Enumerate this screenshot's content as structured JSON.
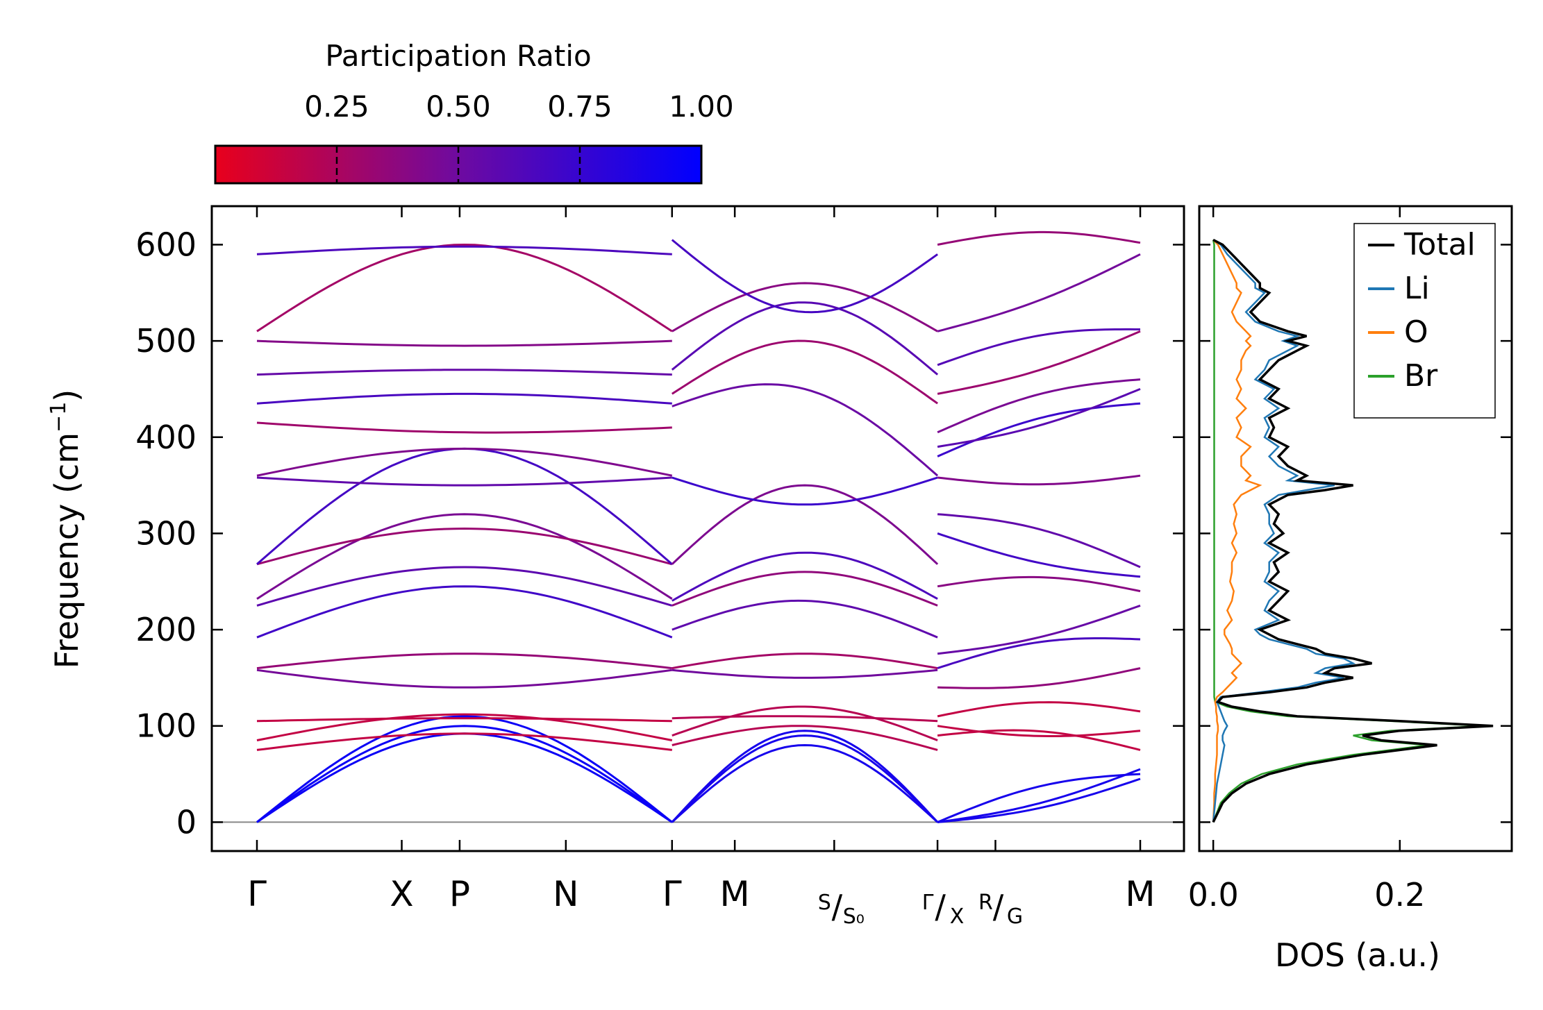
{
  "chart_data": [
    {
      "type": "line",
      "name": "phonon-dispersion",
      "ylabel_main": "Frequency (cm",
      "ylabel_sup": "−1",
      "ylabel_end": ")",
      "ylim": [
        -30,
        640
      ],
      "yticks": [
        0,
        100,
        200,
        300,
        400,
        500,
        600
      ],
      "ytick_labels": [
        "0",
        "100",
        "200",
        "300",
        "400",
        "500",
        "600"
      ],
      "segments": [
        {
          "labels": [
            "Γ",
            "X",
            "P",
            "N",
            "Γ"
          ],
          "kpos": [
            0,
            1.5,
            2.1,
            3.2,
            4.3
          ]
        },
        {
          "labels": [
            "Γ",
            "M",
            "S/S0",
            "Γ/X"
          ],
          "kpos": [
            4.3,
            4.95,
            5.98,
            7.05
          ]
        },
        {
          "labels": [
            "Γ/X",
            "R/G",
            "M"
          ],
          "kpos": [
            7.05,
            7.65,
            9.15
          ]
        }
      ],
      "tick_labels": [
        {
          "main": "Γ",
          "k": 0
        },
        {
          "main": "X",
          "k": 1.5
        },
        {
          "main": "P",
          "k": 2.1
        },
        {
          "main": "N",
          "k": 3.2
        },
        {
          "main": "Γ",
          "k": 4.3
        },
        {
          "main": "M",
          "k": 4.95
        },
        {
          "main": "S",
          "sub": "S₀",
          "k": 5.98
        },
        {
          "main": "Γ",
          "sub": "X",
          "k": 7.05
        },
        {
          "main": "R",
          "sub": "G",
          "k": 7.65
        },
        {
          "main": "M",
          "k": 9.15
        }
      ],
      "bands_seg1_start": [
        0,
        0,
        0,
        75,
        85,
        105,
        158,
        160,
        192,
        225,
        232,
        268,
        268,
        358,
        360,
        415,
        435,
        465,
        500,
        510,
        590
      ],
      "bands_seg1_mid": [
        100,
        110,
        92,
        92,
        112,
        108,
        140,
        175,
        245,
        265,
        320,
        305,
        388,
        350,
        388,
        405,
        445,
        470,
        495,
        600,
        598
      ],
      "bands_seg1_end": [
        0,
        0,
        0,
        75,
        85,
        105,
        158,
        160,
        192,
        225,
        232,
        268,
        268,
        358,
        360,
        410,
        435,
        465,
        500,
        510,
        590
      ],
      "bands_seg2_start": [
        0,
        0,
        0,
        80,
        90,
        108,
        158,
        160,
        200,
        225,
        230,
        268,
        358,
        432,
        445,
        470,
        510,
        605
      ],
      "bands_seg2_mid": [
        90,
        80,
        95,
        100,
        120,
        110,
        150,
        175,
        230,
        260,
        280,
        350,
        330,
        450,
        500,
        540,
        560,
        530
      ],
      "bands_seg2_end": [
        0,
        0,
        0,
        75,
        85,
        105,
        158,
        160,
        192,
        225,
        232,
        268,
        358,
        360,
        435,
        465,
        510,
        590
      ],
      "bands_seg3_start": [
        0,
        0,
        0,
        90,
        100,
        110,
        140,
        160,
        175,
        245,
        300,
        320,
        358,
        380,
        390,
        405,
        445,
        475,
        510,
        600
      ],
      "bands_seg3_end": [
        45,
        50,
        55,
        75,
        95,
        115,
        160,
        190,
        225,
        240,
        255,
        265,
        360,
        435,
        450,
        460,
        510,
        512,
        590,
        602
      ],
      "h_line_y": 0
    },
    {
      "type": "line",
      "name": "density-of-states",
      "xlabel": "DOS (a.u.)",
      "xlim": [
        -0.015,
        0.32
      ],
      "xticks": [
        0.0,
        0.2
      ],
      "xtick_labels": [
        "0.0",
        "0.2"
      ],
      "freq": [
        0,
        10,
        20,
        30,
        40,
        50,
        60,
        70,
        80,
        85,
        90,
        95,
        100,
        105,
        110,
        115,
        120,
        125,
        130,
        135,
        140,
        145,
        150,
        155,
        160,
        165,
        170,
        175,
        180,
        185,
        190,
        195,
        200,
        210,
        220,
        230,
        240,
        250,
        260,
        270,
        280,
        290,
        300,
        310,
        320,
        330,
        340,
        345,
        350,
        355,
        360,
        370,
        380,
        390,
        400,
        410,
        420,
        430,
        440,
        450,
        460,
        470,
        480,
        490,
        495,
        500,
        505,
        510,
        520,
        530,
        540,
        550,
        555,
        560,
        570,
        580,
        590,
        600,
        605
      ],
      "series": [
        {
          "name": "Total",
          "color": "#000000",
          "values": [
            0.0,
            0.005,
            0.01,
            0.02,
            0.035,
            0.06,
            0.1,
            0.16,
            0.24,
            0.18,
            0.16,
            0.2,
            0.3,
            0.2,
            0.09,
            0.05,
            0.02,
            0.005,
            0.01,
            0.06,
            0.1,
            0.12,
            0.15,
            0.12,
            0.13,
            0.17,
            0.15,
            0.12,
            0.11,
            0.09,
            0.07,
            0.06,
            0.05,
            0.08,
            0.06,
            0.07,
            0.08,
            0.06,
            0.07,
            0.065,
            0.08,
            0.06,
            0.075,
            0.065,
            0.07,
            0.06,
            0.08,
            0.12,
            0.15,
            0.09,
            0.1,
            0.08,
            0.07,
            0.08,
            0.06,
            0.065,
            0.06,
            0.08,
            0.06,
            0.07,
            0.05,
            0.06,
            0.07,
            0.09,
            0.1,
            0.08,
            0.1,
            0.08,
            0.05,
            0.04,
            0.05,
            0.06,
            0.05,
            0.05,
            0.04,
            0.03,
            0.02,
            0.01,
            0.0
          ]
        },
        {
          "name": "Li",
          "color": "#1f77b4",
          "values": [
            0.0,
            0.001,
            0.002,
            0.003,
            0.004,
            0.006,
            0.008,
            0.01,
            0.012,
            0.01,
            0.01,
            0.012,
            0.015,
            0.012,
            0.01,
            0.008,
            0.006,
            0.004,
            0.008,
            0.05,
            0.09,
            0.11,
            0.14,
            0.11,
            0.12,
            0.15,
            0.14,
            0.11,
            0.1,
            0.08,
            0.06,
            0.05,
            0.045,
            0.07,
            0.055,
            0.06,
            0.07,
            0.055,
            0.06,
            0.06,
            0.07,
            0.055,
            0.065,
            0.06,
            0.06,
            0.055,
            0.07,
            0.1,
            0.13,
            0.08,
            0.09,
            0.07,
            0.06,
            0.07,
            0.055,
            0.06,
            0.055,
            0.07,
            0.055,
            0.065,
            0.045,
            0.055,
            0.06,
            0.08,
            0.09,
            0.075,
            0.09,
            0.07,
            0.045,
            0.035,
            0.045,
            0.055,
            0.045,
            0.045,
            0.035,
            0.025,
            0.015,
            0.008,
            0.0
          ]
        },
        {
          "name": "O",
          "color": "#ff7f0e",
          "values": [
            0.0,
            0.0005,
            0.001,
            0.001,
            0.002,
            0.002,
            0.003,
            0.004,
            0.004,
            0.004,
            0.004,
            0.005,
            0.005,
            0.004,
            0.004,
            0.003,
            0.003,
            0.002,
            0.004,
            0.01,
            0.015,
            0.02,
            0.025,
            0.02,
            0.025,
            0.03,
            0.025,
            0.02,
            0.02,
            0.018,
            0.015,
            0.012,
            0.012,
            0.02,
            0.015,
            0.02,
            0.022,
            0.018,
            0.02,
            0.02,
            0.025,
            0.02,
            0.025,
            0.022,
            0.025,
            0.022,
            0.03,
            0.04,
            0.05,
            0.035,
            0.04,
            0.03,
            0.03,
            0.04,
            0.025,
            0.03,
            0.025,
            0.035,
            0.025,
            0.03,
            0.025,
            0.03,
            0.03,
            0.035,
            0.04,
            0.035,
            0.04,
            0.035,
            0.025,
            0.02,
            0.025,
            0.03,
            0.025,
            0.025,
            0.02,
            0.015,
            0.01,
            0.005,
            0.0
          ]
        },
        {
          "name": "Br",
          "color": "#2ca02c",
          "values": [
            0.0,
            0.004,
            0.008,
            0.017,
            0.03,
            0.052,
            0.09,
            0.15,
            0.23,
            0.17,
            0.15,
            0.19,
            0.29,
            0.19,
            0.08,
            0.04,
            0.015,
            0.002,
            0.001,
            0.001,
            0.001,
            0.001,
            0.001,
            0.001,
            0.001,
            0.001,
            0.001,
            0.001,
            0.001,
            0.001,
            0.001,
            0.001,
            0.001,
            0.001,
            0.001,
            0.001,
            0.001,
            0.001,
            0.001,
            0.001,
            0.001,
            0.001,
            0.001,
            0.001,
            0.001,
            0.001,
            0.001,
            0.001,
            0.001,
            0.001,
            0.001,
            0.001,
            0.001,
            0.001,
            0.001,
            0.001,
            0.001,
            0.001,
            0.001,
            0.001,
            0.001,
            0.001,
            0.001,
            0.001,
            0.001,
            0.001,
            0.001,
            0.001,
            0.001,
            0.001,
            0.001,
            0.001,
            0.001,
            0.001,
            0.001,
            0.001,
            0.001,
            0.001,
            0.0
          ]
        }
      ],
      "legend": [
        "Total",
        "Li",
        "O",
        "Br"
      ],
      "legend_position": "top-right"
    }
  ],
  "colorbar": {
    "title": "Participation Ratio",
    "min": 0.0,
    "max": 1.0,
    "ticks": [
      0.25,
      0.5,
      0.75,
      1.0
    ],
    "tick_labels": [
      "0.25",
      "0.50",
      "0.75",
      "1.00"
    ],
    "color_low": "#e8001c",
    "color_mid": "#6e0aa0",
    "color_high": "#0000ff"
  }
}
